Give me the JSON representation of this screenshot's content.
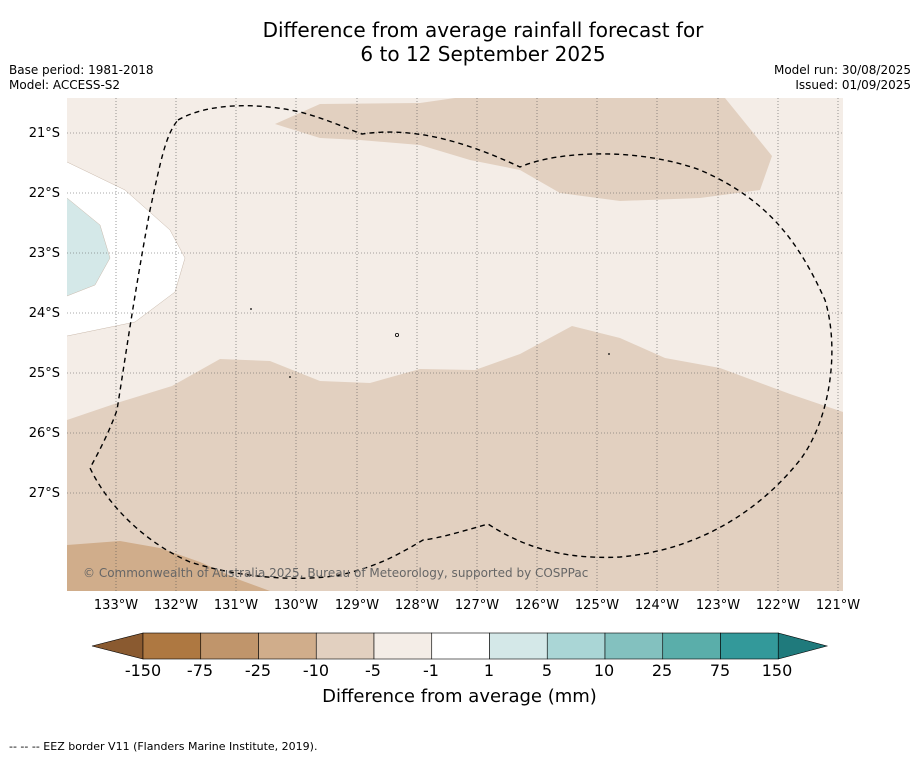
{
  "title": {
    "line1": "Difference from average rainfall forecast for",
    "line2": "6 to 12 September 2025"
  },
  "meta_left": {
    "base_period": "Base period: 1981-2018",
    "model": "Model: ACCESS-S2"
  },
  "meta_right": {
    "model_run": "Model run: 30/08/2025",
    "issued": "Issued: 01/09/2025"
  },
  "map": {
    "copyright": "© Commonwealth of Australia 2025, Bureau of Meteorology, supported by COSPPac",
    "lat_labels": [
      "21°S",
      "22°S",
      "23°S",
      "24°S",
      "25°S",
      "26°S",
      "27°S"
    ],
    "lon_labels": [
      "133°W",
      "132°W",
      "131°W",
      "130°W",
      "129°W",
      "128°W",
      "127°W",
      "126°W",
      "125°W",
      "124°W",
      "123°W",
      "122°W",
      "121°W"
    ],
    "colors": {
      "cat_minus5_minus1": "#f4ede7",
      "cat_minus10_minus5": "#e2d0c0",
      "cat_minus25_minus10": "#d0ad8b",
      "cat_minus1_1": "#ffffff",
      "cat_1_5": "#d4e8e8"
    }
  },
  "colorbar": {
    "label": "Difference from average (mm)",
    "ticks": [
      "-150",
      "-75",
      "-25",
      "-10",
      "-5",
      "-1",
      "1",
      "5",
      "10",
      "25",
      "75",
      "150"
    ],
    "colors": [
      "#8a5a30",
      "#ae7841",
      "#c0956b",
      "#d0ad8b",
      "#e2d0c0",
      "#f4ede7",
      "#ffffff",
      "#d4e8e8",
      "#aad6d6",
      "#83c1bf",
      "#5aaeaa",
      "#33999a",
      "#1f7a7c"
    ]
  },
  "footnote": "--  --  -- EEZ border V11 (Flanders Marine Institute, 2019)."
}
